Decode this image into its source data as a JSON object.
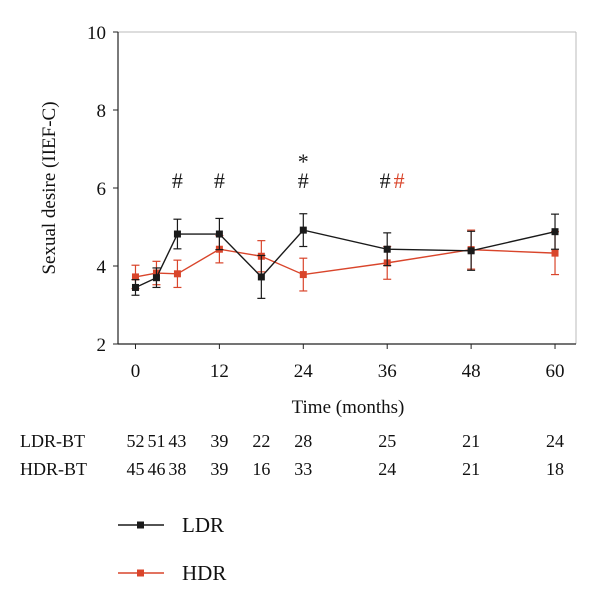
{
  "chart_data": {
    "type": "line",
    "xlabel": "Time (months)",
    "ylabel": "Sexual desire (IIEF-C)",
    "xlim": [
      -2.5,
      63
    ],
    "ylim": [
      2,
      10
    ],
    "xticks": [
      "0",
      "12",
      "24",
      "36",
      "48",
      "60"
    ],
    "yticks": [
      "2",
      "4",
      "6",
      "8",
      "10"
    ],
    "colors": {
      "LDR": "#1a1a1a",
      "HDR": "#d9452b"
    },
    "series": [
      {
        "name": "LDR",
        "x": [
          0,
          3,
          6,
          12,
          18,
          24,
          36,
          48,
          60
        ],
        "y": [
          3.45,
          3.7,
          4.82,
          4.82,
          3.72,
          4.92,
          4.43,
          4.39,
          4.88
        ],
        "err": [
          0.2,
          0.25,
          0.38,
          0.4,
          0.55,
          0.42,
          0.42,
          0.5,
          0.45
        ]
      },
      {
        "name": "HDR",
        "x": [
          0,
          3,
          6,
          12,
          18,
          24,
          36,
          48,
          60
        ],
        "y": [
          3.72,
          3.82,
          3.8,
          4.43,
          4.25,
          3.78,
          4.08,
          4.42,
          4.33
        ],
        "err": [
          0.3,
          0.3,
          0.35,
          0.35,
          0.4,
          0.42,
          0.42,
          0.5,
          0.55
        ]
      }
    ],
    "annotations": [
      {
        "x": 6,
        "y": 6.2,
        "text": "#",
        "color": "#1a1a1a"
      },
      {
        "x": 12,
        "y": 6.2,
        "text": "#",
        "color": "#1a1a1a"
      },
      {
        "x": 24,
        "y": 6.2,
        "text": "#",
        "color": "#1a1a1a"
      },
      {
        "x": 24,
        "y": 6.8,
        "text": "*",
        "color": "#1a1a1a"
      },
      {
        "x": 35.7,
        "y": 6.2,
        "text": "#",
        "color": "#1a1a1a"
      },
      {
        "x": 37.7,
        "y": 6.2,
        "text": "#",
        "color": "#d9452b"
      }
    ],
    "number_at_risk": {
      "x": [
        0,
        3,
        6,
        12,
        18,
        24,
        36,
        48,
        60
      ],
      "rows": [
        {
          "label": "LDR-BT",
          "values": [
            "52",
            "51",
            "43",
            "39",
            "22",
            "28",
            "25",
            "21",
            "24"
          ]
        },
        {
          "label": "HDR-BT",
          "values": [
            "45",
            "46",
            "38",
            "39",
            "16",
            "33",
            "24",
            "21",
            "18"
          ]
        }
      ]
    },
    "legend": [
      {
        "label": "LDR",
        "series": "LDR"
      },
      {
        "label": "HDR",
        "series": "HDR"
      }
    ],
    "legend_position": "bottom-left"
  }
}
